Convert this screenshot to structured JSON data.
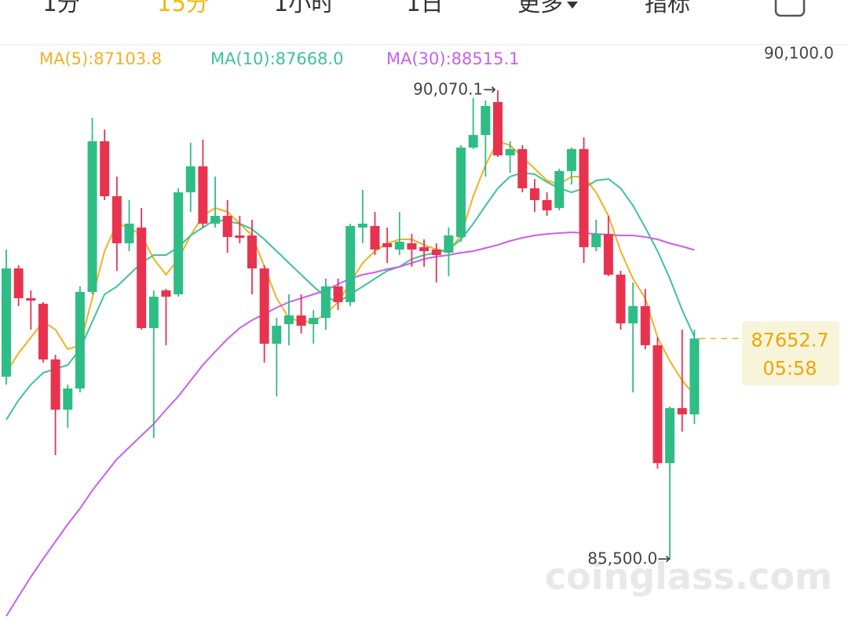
{
  "tabs": [
    "1分",
    "15分",
    "1小时",
    "1日",
    "更多",
    "指标"
  ],
  "selected_tab": 1,
  "watermark": "coinglass.com",
  "chart_data": {
    "type": "candlestick",
    "up_color": "#2ebd85",
    "down_color": "#e8334f",
    "open": [
      87281,
      88335,
      88045,
      87991,
      87449,
      86960,
      87166,
      88106,
      89573,
      89038,
      88580,
      88733,
      87754,
      88121,
      88083,
      89076,
      89329,
      88771,
      88847,
      88656,
      88656,
      88335,
      87602,
      87793,
      87877,
      87793,
      87854,
      88160,
      88007,
      88733,
      88748,
      88580,
      88519,
      88580,
      88542,
      88519,
      88488,
      88641,
      89512,
      89634,
      89955,
      89436,
      89497,
      89115,
      89000,
      88924,
      89283,
      89497,
      88542,
      88671,
      88274,
      87800,
      87968,
      87587,
      86440,
      86975,
      86914
    ],
    "high": [
      88518,
      88366,
      88121,
      88007,
      87495,
      87204,
      88160,
      89802,
      89688,
      89229,
      89000,
      88924,
      88121,
      88137,
      89115,
      89558,
      89588,
      89229,
      89000,
      88847,
      88809,
      88366,
      87854,
      88083,
      88083,
      87930,
      88236,
      88236,
      88771,
      89099,
      88885,
      88733,
      88885,
      88671,
      88618,
      88580,
      88733,
      89535,
      89993,
      89970,
      90070.1,
      89573,
      89535,
      89206,
      89076,
      89306,
      89512,
      89611,
      88809,
      88847,
      88312,
      88198,
      88137,
      87663,
      86990,
      87739,
      87739
    ],
    "low": [
      87204,
      87968,
      87739,
      87418,
      86517,
      86784,
      87128,
      88083,
      89000,
      88312,
      88503,
      87739,
      86685,
      87587,
      88060,
      88885,
      88733,
      88733,
      88488,
      88580,
      88083,
      87418,
      87090,
      87587,
      87701,
      87602,
      87739,
      87930,
      87968,
      88580,
      88465,
      88389,
      88465,
      88351,
      88351,
      88198,
      88259,
      88595,
      89497,
      89229,
      89420,
      89267,
      89076,
      88885,
      88847,
      88901,
      89153,
      88389,
      88503,
      88259,
      87739,
      87128,
      87548,
      86387,
      85500,
      86746,
      86822
    ],
    "close": [
      88335,
      88045,
      88022,
      87449,
      86960,
      87166,
      88106,
      89573,
      89038,
      88580,
      88771,
      87754,
      88060,
      88060,
      89076,
      89329,
      88771,
      88847,
      88641,
      88633,
      88335,
      87602,
      87777,
      87877,
      87777,
      87854,
      88160,
      88007,
      88748,
      88771,
      88519,
      88542,
      88595,
      88519,
      88503,
      88465,
      88656,
      89512,
      89634,
      89917,
      89436,
      89497,
      89115,
      89000,
      88901,
      89283,
      89497,
      88542,
      88671,
      88274,
      87800,
      87968,
      87587,
      86440,
      86975,
      86914,
      87652.7
    ],
    "series": [
      {
        "name": "MA(5):87103.8",
        "color": "#f2b124",
        "values": [
          87319,
          87510,
          87663,
          87816,
          87739,
          87548,
          87586,
          88045,
          88503,
          88771,
          88733,
          88656,
          88427,
          88274,
          88427,
          88656,
          88847,
          88924,
          88885,
          88771,
          88656,
          88351,
          88045,
          87854,
          87816,
          87816,
          87892,
          88007,
          88198,
          88389,
          88503,
          88580,
          88618,
          88618,
          88564,
          88519,
          88503,
          88656,
          89038,
          89344,
          89573,
          89535,
          89420,
          89306,
          89191,
          89153,
          89229,
          89229,
          89076,
          88847,
          88503,
          88236,
          88045,
          87663,
          87434,
          87243,
          87103.8
        ]
      },
      {
        "name": "MA(10):87668.0",
        "color": "#3cc497",
        "values": [
          86861,
          87052,
          87204,
          87319,
          87357,
          87395,
          87548,
          87816,
          88083,
          88159,
          88274,
          88389,
          88465,
          88465,
          88542,
          88656,
          88733,
          88809,
          88794,
          88771,
          88717,
          88618,
          88503,
          88389,
          88274,
          88159,
          88060,
          88007,
          88083,
          88159,
          88236,
          88312,
          88351,
          88427,
          88465,
          88488,
          88519,
          88618,
          88771,
          88947,
          89115,
          89229,
          89267,
          89252,
          89176,
          89115,
          89076,
          89115,
          89191,
          89206,
          89115,
          88947,
          88733,
          88503,
          88236,
          87930,
          87668.0
        ]
      },
      {
        "name": "MA(30):88515.1",
        "color": "#c860f0",
        "values": [
          84950,
          85141,
          85332,
          85508,
          85676,
          85844,
          85997,
          86173,
          86326,
          86478,
          86593,
          86708,
          86822,
          86960,
          87090,
          87243,
          87395,
          87525,
          87648,
          87755,
          87831,
          87892,
          87953,
          88007,
          88045,
          88083,
          88121,
          88182,
          88236,
          88274,
          88297,
          88328,
          88351,
          88389,
          88427,
          88450,
          88465,
          88488,
          88503,
          88534,
          88564,
          88603,
          88633,
          88656,
          88671,
          88679,
          88687,
          88679,
          88671,
          88664,
          88656,
          88656,
          88641,
          88618,
          88580,
          88549,
          88515.1
        ]
      }
    ],
    "ylim": [
      84805,
      90490
    ],
    "yticks": [
      {
        "value": 90100,
        "label": "90,100.0"
      }
    ],
    "high_label": {
      "value": 90070.1,
      "label": "90,070.1→"
    },
    "low_label": {
      "value": 85500,
      "label": "85,500.0→"
    },
    "last_price": 87652.7,
    "countdown": "05:58"
  }
}
